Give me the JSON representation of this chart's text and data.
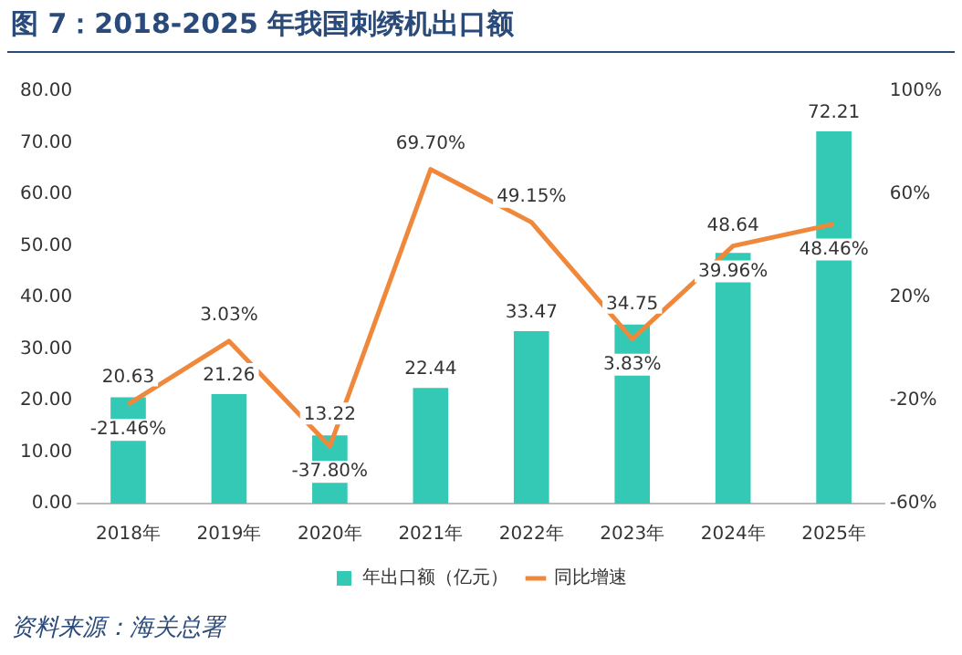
{
  "chart_data": {
    "type": "bar",
    "title": "图 7：2018-2025 年我国刺绣机出口额",
    "categories": [
      "2018年",
      "2019年",
      "2020年",
      "2021年",
      "2022年",
      "2023年",
      "2024年",
      "2025年"
    ],
    "series": [
      {
        "name": "年出口额（亿元）",
        "color": "#33c9b5",
        "values": [
          20.63,
          21.26,
          13.22,
          22.44,
          33.47,
          34.75,
          48.64,
          72.21
        ],
        "value_labels": [
          "20.63",
          "21.26",
          "13.22",
          "22.44",
          "33.47",
          "34.75",
          "48.64",
          "72.21"
        ]
      },
      {
        "name": "同比增速",
        "type": "line",
        "axis": "y2",
        "color": "#f0883c",
        "values": [
          -21.46,
          3.03,
          -37.8,
          69.7,
          49.15,
          3.83,
          39.96,
          48.46
        ],
        "value_labels": [
          "-21.46%",
          "3.03%",
          "-37.80%",
          "69.70%",
          "49.15%",
          "3.83%",
          "39.96%",
          "48.46%"
        ]
      }
    ],
    "ylim": [
      0,
      80
    ],
    "yticks": [
      {
        "value": 0,
        "label": "0.00"
      },
      {
        "value": 10,
        "label": "10.00"
      },
      {
        "value": 20,
        "label": "20.00"
      },
      {
        "value": 30,
        "label": "30.00"
      },
      {
        "value": 40,
        "label": "40.00"
      },
      {
        "value": 50,
        "label": "50.00"
      },
      {
        "value": 60,
        "label": "60.00"
      },
      {
        "value": 70,
        "label": "70.00"
      },
      {
        "value": 80,
        "label": "80.00"
      }
    ],
    "y2lim": [
      -60,
      100
    ],
    "y2ticks": [
      {
        "value": -60,
        "label": "-60%"
      },
      {
        "value": -20,
        "label": "-20%"
      },
      {
        "value": 20,
        "label": "20%"
      },
      {
        "value": 60,
        "label": "60%"
      },
      {
        "value": 100,
        "label": "100%"
      }
    ],
    "grid": false,
    "legend": "bottom",
    "marker": "none",
    "annotations": [
      "资料来源：海关总署"
    ]
  }
}
